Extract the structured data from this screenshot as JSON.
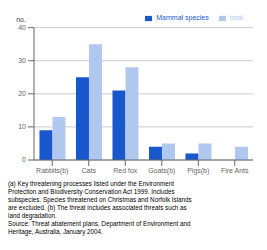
{
  "chart_data": {
    "type": "bar",
    "categories": [
      "Rabbits(b)",
      "Cats",
      "Red fox",
      "Goats(b)",
      "Pigs(b)",
      "Fire Ants"
    ],
    "series": [
      {
        "name": "Mammal species",
        "color": "#1858cc",
        "values": [
          9,
          25,
          21,
          4,
          2,
          0
        ]
      },
      {
        "name": "total",
        "color": "#b0c8f0",
        "values": [
          13,
          35,
          28,
          5,
          5,
          4
        ]
      }
    ],
    "ylabel": "no.",
    "ylim": [
      0,
      40
    ],
    "yticks": [
      0,
      10,
      20,
      30,
      40
    ],
    "grid": true,
    "legend": "upper right",
    "annotations": [
      "(a) Key threatening processes listed under the Environment\nProtection and Biodiversity Conservation Act 1999. Includes\nsubspecies. Species threatened on Christmas and Norfolk Islands\nare excluded. (b) The threat includes associated threats such as\nland degradation.\nSource: Threat abatement plans, Department of Environment and\nHeritage, Australia, January 2004."
    ]
  }
}
